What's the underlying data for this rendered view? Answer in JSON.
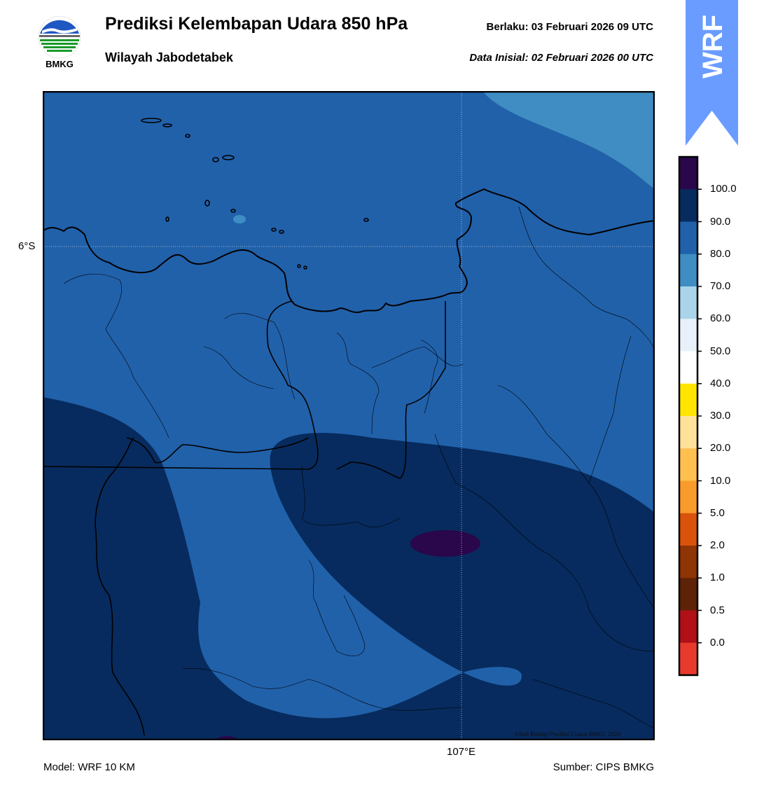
{
  "header": {
    "title": "Prediksi Kelembapan Udara 850 hPa",
    "subtitle": "Wilayah Jabodetabek",
    "valid": "Berlaku:  03 Februari 2026 09 UTC",
    "initial": "Data Inisial:  02 Februari 2026 00 UTC"
  },
  "logo": {
    "text": "BMKG",
    "icon": "bmkg-logo-icon"
  },
  "badge": {
    "text": "WRF",
    "color": "#6a9cff"
  },
  "map": {
    "lat_label": "6°S",
    "lon_label": "107°E",
    "copyright": "©Sub Bidang Prediksi Cuaca BMKG, 2020",
    "colors": {
      "band_70_80": "#3f8dc2",
      "band_80_90": "#2161aa",
      "band_90_100": "#072b5e",
      "band_100": "#2a064b"
    }
  },
  "footer": {
    "model": "Model: WRF 10 KM",
    "source": "Sumber: CIPS BMKG"
  },
  "colorbar": {
    "ticks": [
      "100.0",
      "90.0",
      "80.0",
      "70.0",
      "60.0",
      "50.0",
      "40.0",
      "30.0",
      "20.0",
      "10.0",
      "5.0",
      "2.0",
      "1.0",
      "0.5",
      "0.0"
    ],
    "colors": [
      "#2a064b",
      "#072b5e",
      "#2161aa",
      "#3f8dc2",
      "#a9d4e9",
      "#e8f1fa",
      "#ffffff",
      "#ffe500",
      "#ffe29a",
      "#ffc050",
      "#f99a2c",
      "#d9530a",
      "#8e3405",
      "#5e2206",
      "#b01016",
      "#e83a2c"
    ]
  }
}
